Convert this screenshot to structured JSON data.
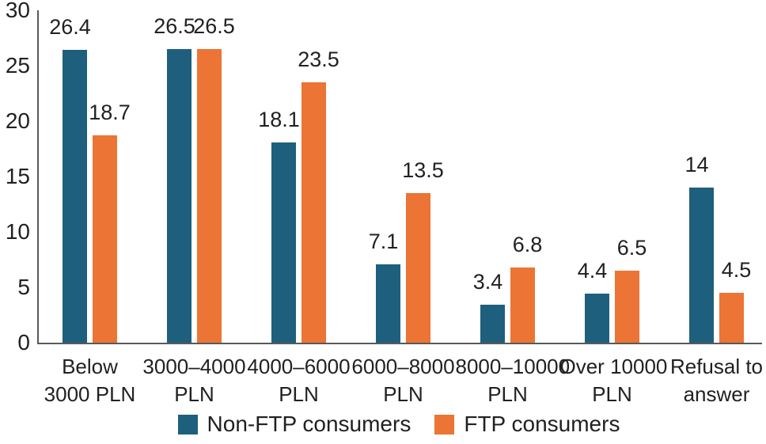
{
  "chart_data": {
    "type": "bar",
    "title": "",
    "xlabel": "",
    "ylabel": "",
    "grid": false,
    "legend_position": "bottom",
    "y_axis": {
      "min": 0,
      "max": 30,
      "step": 5,
      "ticks": [
        "0",
        "5",
        "10",
        "15",
        "20",
        "25",
        "30"
      ]
    },
    "categories": [
      [
        "Below",
        "3000 PLN"
      ],
      [
        "3000–4000",
        "PLN"
      ],
      [
        "4000–6000",
        "PLN"
      ],
      [
        "6000–8000",
        "PLN"
      ],
      [
        "8000–10000",
        "PLN"
      ],
      [
        "Over 10000",
        "PLN"
      ],
      [
        "Refusal to",
        "answer"
      ]
    ],
    "series": [
      {
        "name": "Non-FTP consumers",
        "color": "#1e5f7d",
        "values": [
          26.4,
          26.5,
          18.1,
          7.1,
          3.4,
          4.4,
          14
        ],
        "labels": [
          "26.4",
          "26.5",
          "18.1",
          "7.1",
          "3.4",
          "4.4",
          "14"
        ]
      },
      {
        "name": "FTP consumers",
        "color": "#ec7434",
        "values": [
          18.7,
          26.5,
          23.5,
          13.5,
          6.8,
          6.5,
          4.5
        ],
        "labels": [
          "18.7",
          "26.5",
          "23.5",
          "13.5",
          "6.8",
          "6.5",
          "4.5"
        ]
      }
    ],
    "colors": {
      "axis_line": "#58595b",
      "text": "#212121",
      "background": "#ffffff"
    }
  }
}
